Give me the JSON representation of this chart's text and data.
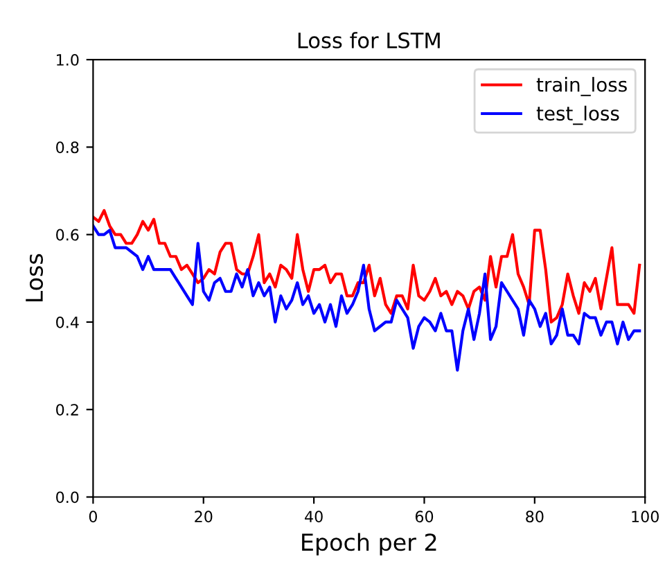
{
  "chart_data": {
    "type": "line",
    "title": "Loss for LSTM",
    "xlabel": "Epoch per 2",
    "ylabel": "Loss",
    "x": [
      0,
      1,
      2,
      3,
      4,
      5,
      6,
      7,
      8,
      9,
      10,
      11,
      12,
      13,
      14,
      15,
      16,
      17,
      18,
      19,
      20,
      21,
      22,
      23,
      24,
      25,
      26,
      27,
      28,
      29,
      30,
      31,
      32,
      33,
      34,
      35,
      36,
      37,
      38,
      39,
      40,
      41,
      42,
      43,
      44,
      45,
      46,
      47,
      48,
      49,
      50,
      51,
      52,
      53,
      54,
      55,
      56,
      57,
      58,
      59,
      60,
      61,
      62,
      63,
      64,
      65,
      66,
      67,
      68,
      69,
      70,
      71,
      72,
      73,
      74,
      75,
      76,
      77,
      78,
      79,
      80,
      81,
      82,
      83,
      84,
      85,
      86,
      87,
      88,
      89,
      90,
      91,
      92,
      93,
      94,
      95,
      96,
      97,
      98,
      99
    ],
    "series": [
      {
        "name": "train_loss",
        "color": "#ff0000",
        "values": [
          0.64,
          0.63,
          0.655,
          0.62,
          0.6,
          0.6,
          0.58,
          0.58,
          0.6,
          0.63,
          0.61,
          0.635,
          0.58,
          0.58,
          0.55,
          0.55,
          0.52,
          0.53,
          0.51,
          0.49,
          0.5,
          0.52,
          0.51,
          0.56,
          0.58,
          0.58,
          0.52,
          0.51,
          0.51,
          0.55,
          0.6,
          0.49,
          0.51,
          0.48,
          0.53,
          0.52,
          0.5,
          0.6,
          0.52,
          0.47,
          0.52,
          0.52,
          0.53,
          0.49,
          0.51,
          0.51,
          0.46,
          0.46,
          0.49,
          0.49,
          0.53,
          0.46,
          0.5,
          0.44,
          0.42,
          0.46,
          0.46,
          0.43,
          0.53,
          0.46,
          0.45,
          0.47,
          0.5,
          0.46,
          0.47,
          0.44,
          0.47,
          0.46,
          0.43,
          0.47,
          0.48,
          0.45,
          0.55,
          0.48,
          0.55,
          0.55,
          0.6,
          0.51,
          0.48,
          0.44,
          0.61,
          0.61,
          0.52,
          0.4,
          0.41,
          0.44,
          0.51,
          0.46,
          0.42,
          0.49,
          0.47,
          0.5,
          0.43,
          0.5,
          0.57,
          0.44,
          0.44,
          0.44,
          0.42,
          0.53
        ]
      },
      {
        "name": "test_loss",
        "color": "#0000ff",
        "values": [
          0.62,
          0.6,
          0.6,
          0.61,
          0.57,
          0.57,
          0.57,
          0.56,
          0.55,
          0.52,
          0.55,
          0.52,
          0.52,
          0.52,
          0.52,
          0.5,
          0.48,
          0.46,
          0.44,
          0.58,
          0.47,
          0.45,
          0.49,
          0.5,
          0.47,
          0.47,
          0.51,
          0.48,
          0.52,
          0.46,
          0.49,
          0.46,
          0.48,
          0.4,
          0.46,
          0.43,
          0.45,
          0.49,
          0.44,
          0.46,
          0.42,
          0.44,
          0.4,
          0.44,
          0.39,
          0.46,
          0.42,
          0.44,
          0.47,
          0.53,
          0.43,
          0.38,
          0.39,
          0.4,
          0.4,
          0.45,
          0.43,
          0.41,
          0.34,
          0.39,
          0.41,
          0.4,
          0.38,
          0.42,
          0.38,
          0.38,
          0.29,
          0.38,
          0.43,
          0.36,
          0.42,
          0.51,
          0.36,
          0.39,
          0.49,
          0.47,
          0.45,
          0.43,
          0.37,
          0.45,
          0.43,
          0.39,
          0.42,
          0.35,
          0.37,
          0.43,
          0.37,
          0.37,
          0.35,
          0.42,
          0.41,
          0.41,
          0.37,
          0.4,
          0.4,
          0.35,
          0.4,
          0.36,
          0.38,
          0.38
        ]
      }
    ],
    "xlim": [
      0,
      100
    ],
    "xticks": [
      0,
      20,
      40,
      60,
      80,
      100
    ],
    "ylim": [
      0,
      1
    ],
    "yticks": [
      {
        "value": 0,
        "label": "0.0"
      },
      {
        "value": 0.2,
        "label": "0.2"
      },
      {
        "value": 0.4,
        "label": "0.4"
      },
      {
        "value": 0.6,
        "label": "0.6"
      },
      {
        "value": 0.8,
        "label": "0.8"
      },
      {
        "value": 1,
        "label": "1.0"
      }
    ],
    "legend": "top right",
    "marker": "none",
    "line_style": "solid",
    "grid": false
  }
}
